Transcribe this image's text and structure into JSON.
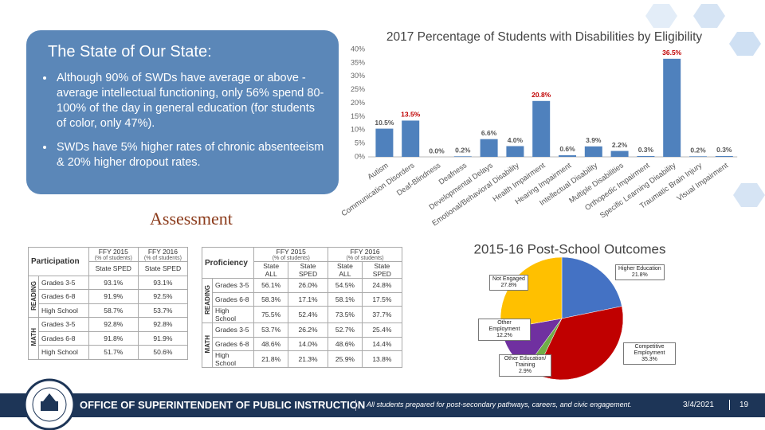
{
  "slide": {
    "heading": "The State of Our State:",
    "bullets": [
      "Although 90% of SWDs have average or above -average intellectual functioning, only 56% spend 80-100% of the day in general education (for students of color, only 47%).",
      "SWDs have 5% higher rates of chronic absenteeism & 20% higher dropout rates."
    ],
    "assessment_label": "Assessment"
  },
  "chart_data": [
    {
      "type": "bar",
      "title": "2017 Percentage of Students with Disabilities by Eligibility",
      "categories": [
        "Autism",
        "Communication Disorders",
        "Deaf-Blindness",
        "Deafness",
        "Developmental Delays",
        "Emotional/Behavioral Disability",
        "Health Impairment",
        "Hearing Impairment",
        "Intellectual Disability",
        "Multiple Disabilities",
        "Orthopedic Impairment",
        "Specific Learning Disability",
        "Traumatic Brain Injury",
        "Visual Impairment"
      ],
      "values": [
        10.5,
        13.5,
        0.0,
        0.2,
        6.6,
        4.0,
        20.8,
        0.6,
        3.9,
        2.2,
        0.3,
        36.5,
        0.2,
        0.3
      ],
      "value_labels": [
        "10.5%",
        "13.5%",
        "0.0%",
        "0.2%",
        "6.6%",
        "4.0%",
        "20.8%",
        "0.6%",
        "3.9%",
        "2.2%",
        "0.3%",
        "36.5%",
        "0.2%",
        "0.3%"
      ],
      "value_label_colors": [
        "#555555",
        "#c00000",
        "#555555",
        "#555555",
        "#555555",
        "#555555",
        "#c00000",
        "#555555",
        "#555555",
        "#555555",
        "#555555",
        "#c00000",
        "#555555",
        "#555555"
      ],
      "color": "#4f81bd",
      "ylim": [
        0,
        40
      ],
      "yticks": [
        {
          "value": 0,
          "label": "0%"
        },
        {
          "value": 5,
          "label": "5%"
        },
        {
          "value": 10,
          "label": "10%"
        },
        {
          "value": 15,
          "label": "15%"
        },
        {
          "value": 20,
          "label": "20%"
        },
        {
          "value": 25,
          "label": "25%"
        },
        {
          "value": 30,
          "label": "30%"
        },
        {
          "value": 35,
          "label": "35%"
        },
        {
          "value": 40,
          "label": "40%"
        }
      ],
      "grid": false
    },
    {
      "type": "pie",
      "title": "2015-16 Post-School Outcomes",
      "categories": [
        "Higher Education",
        "Competitive Employment",
        "Other Education/ Training",
        "Other Employment",
        "Not Engaged"
      ],
      "values": [
        21.8,
        35.3,
        2.9,
        12.2,
        27.8
      ],
      "value_labels": [
        "21.8%",
        "35.3%",
        "2.9%",
        "12.2%",
        "27.8%"
      ],
      "colors": [
        "#4472c4",
        "#c00000",
        "#70ad47",
        "#7030a0",
        "#ffc000"
      ]
    }
  ],
  "participation_table": {
    "title": "Participation",
    "columns": [
      {
        "label": "FFY 2015",
        "note": "(% of students)",
        "subs": [
          "State SPED"
        ]
      },
      {
        "label": "FFY 2016",
        "note": "(% of students)",
        "subs": [
          "State SPED"
        ]
      }
    ],
    "groups": [
      {
        "name": "READING",
        "rows": [
          {
            "label": "Grades 3-5",
            "values": [
              "93.1%",
              "93.1%"
            ]
          },
          {
            "label": "Grades 6-8",
            "values": [
              "91.9%",
              "92.5%"
            ]
          },
          {
            "label": "High School",
            "values": [
              "58.7%",
              "53.7%"
            ]
          }
        ]
      },
      {
        "name": "MATH",
        "rows": [
          {
            "label": "Grades 3-5",
            "values": [
              "92.8%",
              "92.8%"
            ]
          },
          {
            "label": "Grades 6-8",
            "values": [
              "91.8%",
              "91.9%"
            ]
          },
          {
            "label": "High School",
            "values": [
              "51.7%",
              "50.6%"
            ]
          }
        ]
      }
    ]
  },
  "proficiency_table": {
    "title": "Proficiency",
    "columns": [
      {
        "label": "FFY 2015",
        "note": "(% of students)",
        "subs": [
          "State ALL",
          "State SPED"
        ]
      },
      {
        "label": "FFY 2016",
        "note": "(% of students)",
        "subs": [
          "State ALL",
          "State SPED"
        ]
      }
    ],
    "groups": [
      {
        "name": "READING",
        "rows": [
          {
            "label": "Grades 3-5",
            "values": [
              "56.1%",
              "26.0%",
              "54.5%",
              "24.8%"
            ]
          },
          {
            "label": "Grades 6-8",
            "values": [
              "58.3%",
              "17.1%",
              "58.1%",
              "17.5%"
            ]
          },
          {
            "label": "High School",
            "values": [
              "75.5%",
              "52.4%",
              "73.5%",
              "37.7%"
            ]
          }
        ]
      },
      {
        "name": "MATH",
        "rows": [
          {
            "label": "Grades 3-5",
            "values": [
              "53.7%",
              "26.2%",
              "52.7%",
              "25.4%"
            ]
          },
          {
            "label": "Grades 6-8",
            "values": [
              "48.6%",
              "14.0%",
              "48.6%",
              "14.4%"
            ]
          },
          {
            "label": "High School",
            "values": [
              "21.8%",
              "21.3%",
              "25.9%",
              "13.8%"
            ]
          }
        ]
      }
    ]
  },
  "footer": {
    "organization": "OFFICE OF SUPERINTENDENT OF PUBLIC INSTRUCTION",
    "tagline": "All students prepared for post-secondary pathways, careers, and civic engagement.",
    "date": "3/4/2021",
    "page_number": "19"
  }
}
